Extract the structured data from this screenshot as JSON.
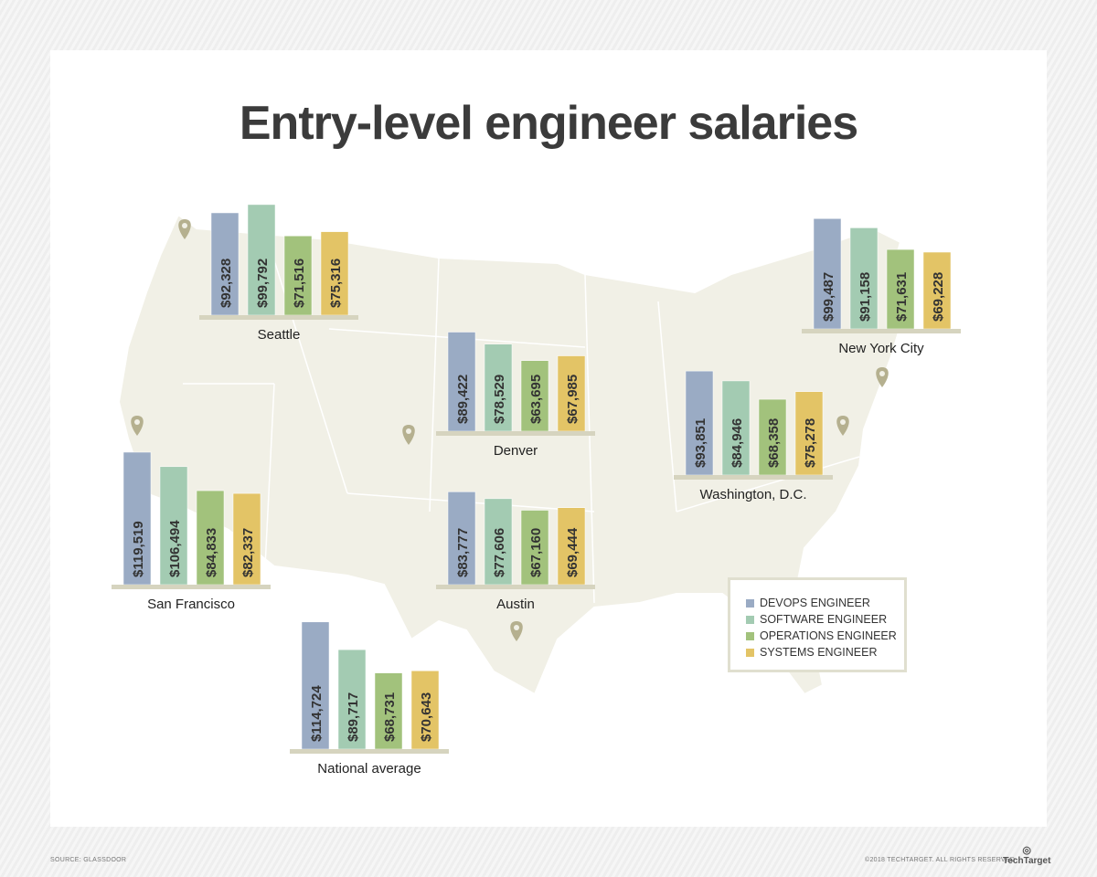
{
  "chart_data": {
    "type": "bar",
    "title": "Entry-level engineer salaries",
    "categories": [
      "Seattle",
      "New York City",
      "Denver",
      "Washington, D.C.",
      "San Francisco",
      "Austin",
      "National average"
    ],
    "series": [
      {
        "name": "DEVOPS ENGINEER",
        "color": "#9aabc4",
        "values": [
          92328,
          99487,
          89422,
          93851,
          119519,
          83777,
          114724
        ]
      },
      {
        "name": "SOFTWARE ENGINEER",
        "color": "#a3cbb2",
        "values": [
          99792,
          91158,
          78529,
          84946,
          106494,
          77606,
          89717
        ]
      },
      {
        "name": "OPERATIONS ENGINEER",
        "color": "#a2c27c",
        "values": [
          71516,
          71631,
          63695,
          68358,
          84833,
          67160,
          68731
        ]
      },
      {
        "name": "SYSTEMS ENGINEER",
        "color": "#e3c466",
        "values": [
          75316,
          69228,
          67985,
          75278,
          82337,
          69444,
          70643
        ]
      }
    ],
    "value_labels": [
      [
        "$92,328",
        "$99,792",
        "$71,516",
        "$75,316"
      ],
      [
        "$99,487",
        "$91,158",
        "$71,631",
        "$69,228"
      ],
      [
        "$89,422",
        "$78,529",
        "$63,695",
        "$67,985"
      ],
      [
        "$93,851",
        "$84,946",
        "$68,358",
        "$75,278"
      ],
      [
        "$119,519",
        "$106,494",
        "$84,833",
        "$82,337"
      ],
      [
        "$83,777",
        "$77,606",
        "$67,160",
        "$69,444"
      ],
      [
        "$114,724",
        "$89,717",
        "$68,731",
        "$70,643"
      ]
    ],
    "legend_placement": "bottom-right",
    "background": "map of the United States with location pins"
  },
  "footer": {
    "source": "SOURCE: GLASSDOOR",
    "copyright": "©2018 TECHTARGET. ALL RIGHTS RESERVED",
    "logo": "TechTarget"
  }
}
